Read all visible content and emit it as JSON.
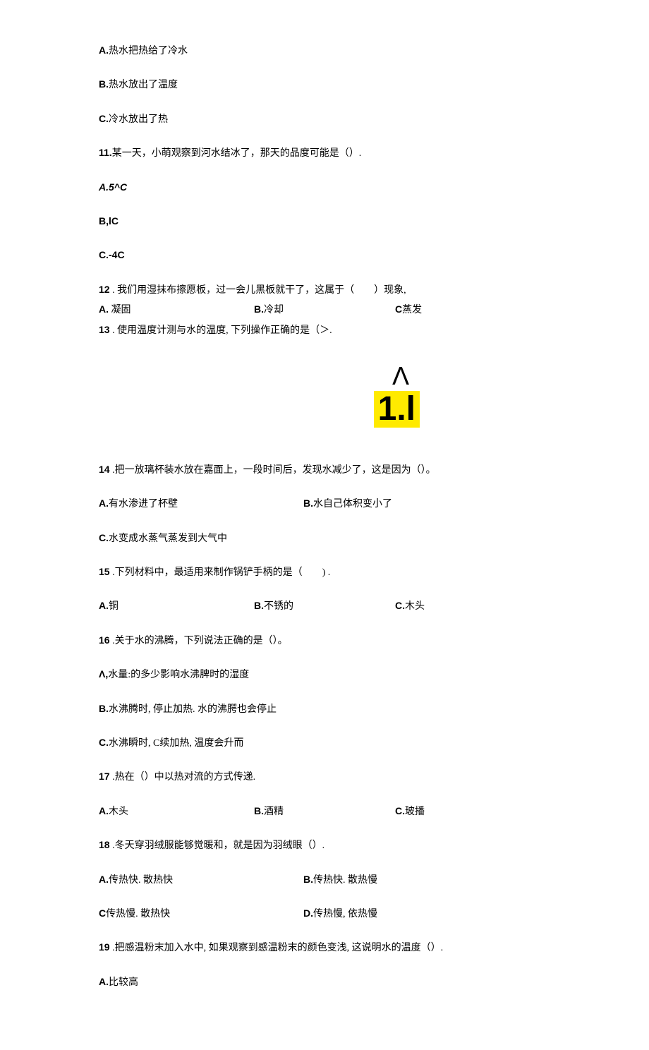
{
  "q10": {
    "opt_a": {
      "label": "A.",
      "text": "热水把热给了冷水"
    },
    "opt_b": {
      "label": "B.",
      "text": "热水放出了温度"
    },
    "opt_c": {
      "label": "C.",
      "text": "冷水放出了热"
    }
  },
  "q11": {
    "stem_num": "11.",
    "stem_text": "某一天，小萌观察到河水结冰了，那天的品度可能是（）.",
    "opt_a": {
      "label": "A.",
      "text": "5^C"
    },
    "opt_b": {
      "label": "B,",
      "text": "lC"
    },
    "opt_c": {
      "label": "C.",
      "text": "-4C"
    }
  },
  "q12": {
    "stem_num": "12",
    "stem_text": " . 我们用湿抹布擦愿板，过一会儿黑板就干了，这属于（　　）现象,",
    "opt_a": {
      "label": "A.",
      "text": " 凝固"
    },
    "opt_b": {
      "label": "B.",
      "text": "冷却"
    },
    "opt_c": {
      "label": "C",
      "text": "蒸发"
    }
  },
  "q13": {
    "stem_num": "13",
    "stem_text": " . 使用温度计测与水的温度, 下列操作正确的是（＞.",
    "fig_caret": "Λ",
    "fig_highlight": "1.l"
  },
  "q14": {
    "stem_num": "14",
    "stem_text": " .把一放璃杯装水放在嘉面上，一段时间后，发现水减少了，这是因为（）。",
    "opt_a": {
      "label": "A.",
      "text": "有水渗进了杯壁"
    },
    "opt_b": {
      "label": "B.",
      "text": "水自己体积变小了"
    },
    "opt_c": {
      "label": "C.",
      "text": "水变成水蒸气蒸发到大气中"
    }
  },
  "q15": {
    "stem_num": "15",
    "stem_text": " .下列材料中，最适用来制作锅铲手柄的是（　　) .",
    "opt_a": {
      "label": "A.",
      "text": "铜"
    },
    "opt_b": {
      "label": "B.",
      "text": "不锈的"
    },
    "opt_c": {
      "label": "C.",
      "text": "木头"
    }
  },
  "q16": {
    "stem_num": "16",
    "stem_text": " .关于水的沸腾，下列说法正确的是（）。",
    "opt_a": {
      "label": "Λ,",
      "text": "水量:的多少影响水沸脾时的湿度"
    },
    "opt_b": {
      "label": "B.",
      "text": "水沸腾时, 停止加热. 水的沸腭也会停止"
    },
    "opt_c": {
      "label": "C.",
      "text": "水沸瞬时, C续加热, 温度会升而"
    }
  },
  "q17": {
    "stem_num": "17",
    "stem_text": " .热在（）中以热对流的方式传递.",
    "opt_a": {
      "label": "A.",
      "text": "木头"
    },
    "opt_b": {
      "label": "B.",
      "text": "酒精"
    },
    "opt_c": {
      "label": "C.",
      "text": "玻播"
    }
  },
  "q18": {
    "stem_num": "18",
    "stem_text": " .冬天穿羽绒服能够觉暖和，就是因为羽绒眼（）.",
    "opt_a": {
      "label": "A.",
      "text": "传热快. 散热快"
    },
    "opt_b": {
      "label": "B.",
      "text": "传热快. 散热慢"
    },
    "opt_c": {
      "label": "C",
      "text": "传热慢. 散热快"
    },
    "opt_d": {
      "label": "D.",
      "text": "传热慢, 依热慢"
    }
  },
  "q19": {
    "stem_num": "19",
    "stem_text": " .把感温粉末加入水中, 如果观察到感温粉末的颜色变浅, 这说明水的温度（）.",
    "opt_a": {
      "label": "A.",
      "text": "比较高"
    }
  }
}
